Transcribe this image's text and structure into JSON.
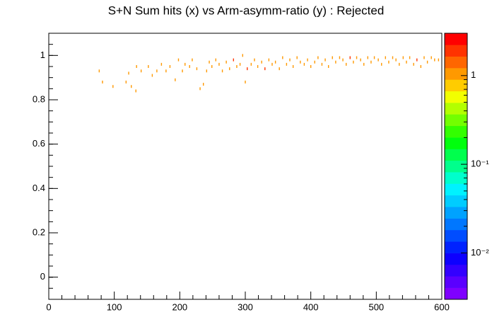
{
  "chart_data": {
    "type": "heatmap",
    "title": "S+N Sum hits (x) vs Arm-asymm-ratio (y) : Rejected",
    "x": [
      77,
      82,
      98,
      118,
      122,
      126,
      133,
      134,
      141,
      152,
      158,
      165,
      172,
      179,
      185,
      193,
      198,
      204,
      208,
      215,
      219,
      226,
      231,
      236,
      241,
      245,
      249,
      255,
      260,
      265,
      271,
      276,
      282,
      287,
      292,
      296,
      300,
      303,
      309,
      314,
      319,
      325,
      330,
      336,
      341,
      346,
      352,
      357,
      363,
      368,
      373,
      379,
      384,
      390,
      395,
      400,
      406,
      411,
      417,
      422,
      427,
      433,
      438,
      444,
      449,
      454,
      460,
      465,
      470,
      476,
      481,
      487,
      492,
      497,
      503,
      508,
      514,
      519,
      525,
      530,
      535,
      541,
      546,
      551,
      557,
      562,
      568,
      573,
      578,
      584,
      589,
      595
    ],
    "y": [
      0.93,
      0.88,
      0.86,
      0.88,
      0.92,
      0.86,
      0.84,
      0.95,
      0.93,
      0.95,
      0.91,
      0.93,
      0.96,
      0.93,
      0.95,
      0.89,
      0.98,
      0.93,
      0.96,
      0.95,
      0.98,
      0.94,
      0.85,
      0.87,
      0.93,
      0.97,
      0.95,
      0.98,
      0.96,
      0.93,
      0.97,
      0.94,
      0.98,
      0.95,
      0.96,
      1.0,
      0.88,
      0.94,
      0.96,
      0.98,
      0.95,
      0.97,
      0.94,
      0.98,
      0.96,
      0.97,
      0.94,
      0.99,
      0.96,
      0.98,
      0.95,
      0.99,
      0.97,
      0.96,
      0.98,
      0.95,
      0.97,
      0.99,
      0.96,
      0.98,
      0.95,
      0.99,
      0.97,
      0.99,
      0.98,
      0.96,
      0.99,
      0.97,
      0.99,
      0.98,
      0.96,
      0.99,
      0.97,
      0.99,
      0.98,
      0.96,
      0.99,
      0.97,
      0.99,
      0.98,
      0.96,
      0.99,
      0.97,
      0.99,
      0.96,
      0.98,
      0.95,
      0.99,
      0.97,
      0.99,
      0.98,
      0.98
    ],
    "z": [
      1,
      1,
      1,
      1,
      1,
      1,
      1,
      1,
      1,
      1,
      1,
      1,
      1,
      1,
      1,
      1,
      1,
      1,
      1,
      1,
      1,
      1,
      1,
      1,
      1,
      1,
      1,
      1,
      1,
      1,
      1,
      1,
      2,
      1,
      1,
      1,
      1,
      2,
      1,
      1,
      1,
      1,
      2,
      1,
      1,
      1,
      1,
      1,
      1,
      1,
      1,
      1,
      1,
      1,
      1,
      1,
      1,
      1,
      1,
      1,
      1,
      1,
      1,
      1,
      1,
      1,
      2,
      1,
      1,
      1,
      1,
      1,
      1,
      1,
      1,
      1,
      1,
      1,
      1,
      1,
      1,
      1,
      1,
      1,
      1,
      2,
      1,
      1,
      1,
      1,
      1,
      1
    ],
    "xlim": [
      0,
      600
    ],
    "xticks": [
      0,
      100,
      200,
      300,
      400,
      500,
      600
    ],
    "xminor": 5,
    "ylim": [
      -0.1,
      1.1
    ],
    "yticks": [
      0,
      0.2,
      0.4,
      0.6,
      0.8,
      1
    ],
    "yminor": 4,
    "zlim": [
      0.003,
      3
    ],
    "zlog": true,
    "zticks": [
      {
        "value": 0.01,
        "label": "10⁻²"
      },
      {
        "value": 0.1,
        "label": "10⁻¹"
      },
      1
    ],
    "palette": [
      "#7f00ff",
      "#5a00ff",
      "#3300ff",
      "#0d00ff",
      "#0022ff",
      "#004dff",
      "#0077ff",
      "#00a2ff",
      "#00ccff",
      "#00f2ff",
      "#00ffcc",
      "#00ff8c",
      "#00ff4d",
      "#00ff0d",
      "#33ff00",
      "#73ff00",
      "#b3ff00",
      "#f2ff00",
      "#ffcc00",
      "#ff9900",
      "#ff6600",
      "#ff3300",
      "#ff0000"
    ]
  }
}
